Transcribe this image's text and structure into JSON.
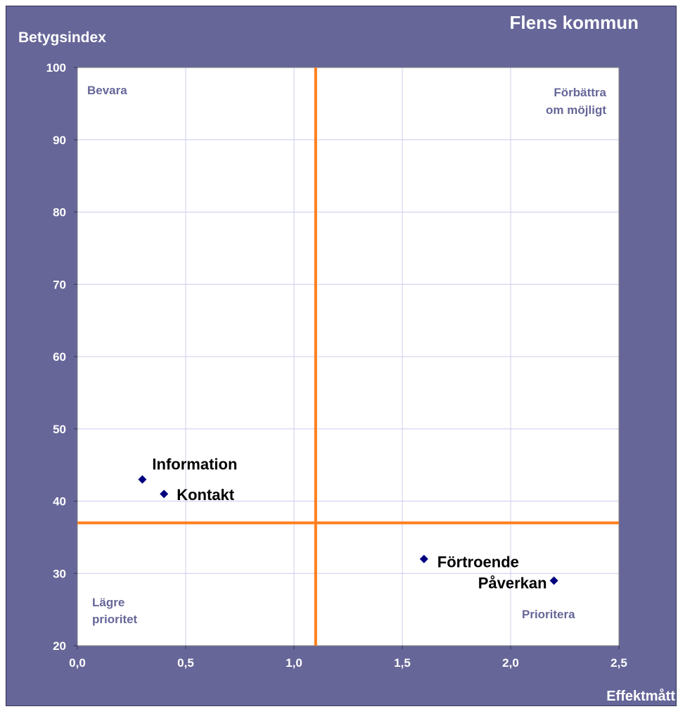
{
  "chart_data": {
    "type": "scatter",
    "title": "Flens kommun",
    "xlabel": "Effektmått",
    "ylabel": "Betygsindex",
    "xlim": [
      0,
      2.5
    ],
    "ylim": [
      20,
      100
    ],
    "x_ticks": [
      "0,0",
      "0,5",
      "1,0",
      "1,5",
      "2,0",
      "2,5"
    ],
    "y_ticks": [
      "20",
      "30",
      "40",
      "50",
      "60",
      "70",
      "80",
      "90",
      "100"
    ],
    "grid": true,
    "points": [
      {
        "label": "Information",
        "x": 0.3,
        "y": 43
      },
      {
        "label": "Kontakt",
        "x": 0.4,
        "y": 41
      },
      {
        "label": "Förtroende",
        "x": 1.6,
        "y": 32
      },
      {
        "label": "Påverkan",
        "x": 2.2,
        "y": 29
      }
    ],
    "reference_lines": {
      "x": 1.1,
      "y": 37
    },
    "quadrant_labels": {
      "top_left": "Bevara",
      "top_right_line1": "Förbättra",
      "top_right_line2": "om möjligt",
      "bottom_left_line1": "Lägre",
      "bottom_left_line2": "prioritet",
      "bottom_right": "Prioritera"
    },
    "colors": {
      "background": "#666699",
      "plot_area": "#ffffff",
      "grid": "#ccccee",
      "reference_line": "#ff7f1e",
      "marker": "#000080"
    }
  }
}
